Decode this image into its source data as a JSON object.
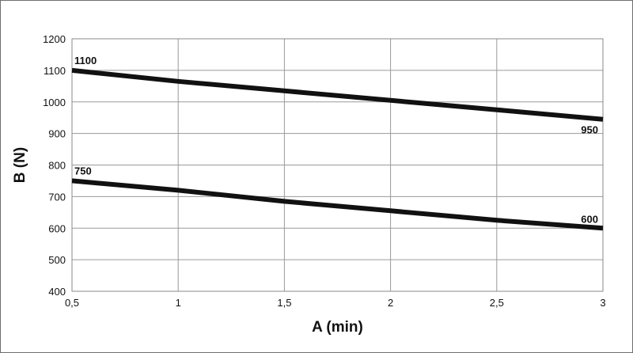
{
  "chart_data": {
    "type": "line",
    "xlabel": "A (min)",
    "ylabel": "B (N)",
    "xlim": [
      0.5,
      3
    ],
    "ylim": [
      400,
      1200
    ],
    "x_ticks": [
      0.5,
      1,
      1.5,
      2,
      2.5,
      3
    ],
    "x_tick_labels": [
      "0,5",
      "1",
      "1,5",
      "2",
      "2,5",
      "3"
    ],
    "y_ticks": [
      400,
      500,
      600,
      700,
      800,
      900,
      1000,
      1100,
      1200
    ],
    "y_tick_labels": [
      "400",
      "500",
      "600",
      "700",
      "800",
      "900",
      "1000",
      "1100",
      "1200"
    ],
    "grid": true,
    "legend": "none",
    "line_color": "#111111",
    "series": [
      {
        "x": [
          0.5,
          1,
          1.5,
          2,
          2.5,
          3
        ],
        "y": [
          1100,
          1065,
          1035,
          1005,
          975,
          945
        ],
        "labels": [
          {
            "x": 0.5,
            "y": 1100,
            "text": "1100"
          },
          {
            "x": 3,
            "y": 945,
            "text": "950"
          }
        ]
      },
      {
        "x": [
          0.5,
          1,
          1.5,
          2,
          2.5,
          3
        ],
        "y": [
          750,
          720,
          685,
          655,
          625,
          600
        ],
        "labels": [
          {
            "x": 0.5,
            "y": 750,
            "text": "750"
          },
          {
            "x": 3,
            "y": 600,
            "text": "600"
          }
        ]
      }
    ]
  }
}
